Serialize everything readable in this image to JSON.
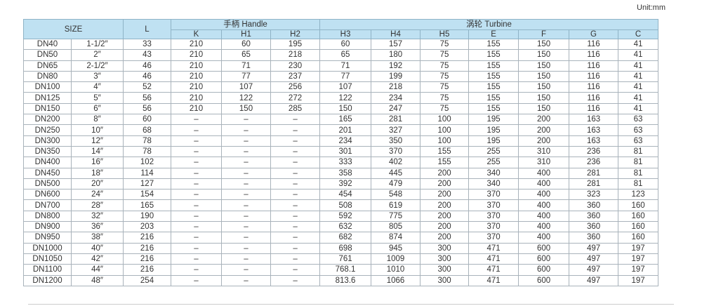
{
  "unit": "Unit:mm",
  "header": {
    "size": "SIZE",
    "l": "L",
    "handle": "手柄 Handle",
    "turbine": "涡轮 Turbine",
    "columns": [
      "K",
      "H1",
      "H2",
      "H3",
      "H4",
      "H5",
      "E",
      "F",
      "G",
      "C"
    ]
  },
  "table": {
    "rows": [
      [
        "DN40",
        "1-1/2″",
        "33",
        "210",
        "60",
        "195",
        "60",
        "157",
        "75",
        "155",
        "150",
        "116",
        "41"
      ],
      [
        "DN50",
        "2″",
        "43",
        "210",
        "65",
        "218",
        "65",
        "180",
        "75",
        "155",
        "150",
        "116",
        "41"
      ],
      [
        "DN65",
        "2-1/2″",
        "46",
        "210",
        "71",
        "230",
        "71",
        "192",
        "75",
        "155",
        "150",
        "116",
        "41"
      ],
      [
        "DN80",
        "3″",
        "46",
        "210",
        "77",
        "237",
        "77",
        "199",
        "75",
        "155",
        "150",
        "116",
        "41"
      ],
      [
        "DN100",
        "4″",
        "52",
        "210",
        "107",
        "256",
        "107",
        "218",
        "75",
        "155",
        "150",
        "116",
        "41"
      ],
      [
        "DN125",
        "5″",
        "56",
        "210",
        "122",
        "272",
        "122",
        "234",
        "75",
        "155",
        "150",
        "116",
        "41"
      ],
      [
        "DN150",
        "6″",
        "56",
        "210",
        "150",
        "285",
        "150",
        "247",
        "75",
        "155",
        "150",
        "116",
        "41"
      ],
      [
        "DN200",
        "8″",
        "60",
        "–",
        "–",
        "–",
        "165",
        "281",
        "100",
        "195",
        "200",
        "163",
        "63"
      ],
      [
        "DN250",
        "10″",
        "68",
        "–",
        "–",
        "–",
        "201",
        "327",
        "100",
        "195",
        "200",
        "163",
        "63"
      ],
      [
        "DN300",
        "12″",
        "78",
        "–",
        "–",
        "–",
        "234",
        "350",
        "100",
        "195",
        "200",
        "163",
        "63"
      ],
      [
        "DN350",
        "14″",
        "78",
        "–",
        "–",
        "–",
        "301",
        "370",
        "155",
        "255",
        "310",
        "236",
        "81"
      ],
      [
        "DN400",
        "16″",
        "102",
        "–",
        "–",
        "–",
        "333",
        "402",
        "155",
        "255",
        "310",
        "236",
        "81"
      ],
      [
        "DN450",
        "18″",
        "114",
        "–",
        "–",
        "–",
        "358",
        "445",
        "200",
        "340",
        "400",
        "281",
        "81"
      ],
      [
        "DN500",
        "20″",
        "127",
        "–",
        "–",
        "–",
        "392",
        "479",
        "200",
        "340",
        "400",
        "281",
        "81"
      ],
      [
        "DN600",
        "24″",
        "154",
        "–",
        "–",
        "–",
        "454",
        "548",
        "200",
        "370",
        "400",
        "323",
        "123"
      ],
      [
        "DN700",
        "28″",
        "165",
        "–",
        "–",
        "–",
        "508",
        "619",
        "200",
        "370",
        "400",
        "360",
        "160"
      ],
      [
        "DN800",
        "32″",
        "190",
        "–",
        "–",
        "–",
        "592",
        "775",
        "200",
        "370",
        "400",
        "360",
        "160"
      ],
      [
        "DN900",
        "36″",
        "203",
        "–",
        "–",
        "–",
        "632",
        "805",
        "200",
        "370",
        "400",
        "360",
        "160"
      ],
      [
        "DN950",
        "38″",
        "216",
        "–",
        "–",
        "–",
        "682",
        "874",
        "200",
        "370",
        "400",
        "360",
        "160"
      ],
      [
        "DN1000",
        "40″",
        "216",
        "–",
        "–",
        "–",
        "698",
        "945",
        "300",
        "471",
        "600",
        "497",
        "197"
      ],
      [
        "DN1050",
        "42″",
        "216",
        "–",
        "–",
        "–",
        "761",
        "1009",
        "300",
        "471",
        "600",
        "497",
        "197"
      ],
      [
        "DN1100",
        "44″",
        "216",
        "–",
        "–",
        "–",
        "768.1",
        "1010",
        "300",
        "471",
        "600",
        "497",
        "197"
      ],
      [
        "DN1200",
        "48″",
        "254",
        "–",
        "–",
        "–",
        "813.6",
        "1066",
        "300",
        "471",
        "600",
        "497",
        "197"
      ]
    ]
  }
}
